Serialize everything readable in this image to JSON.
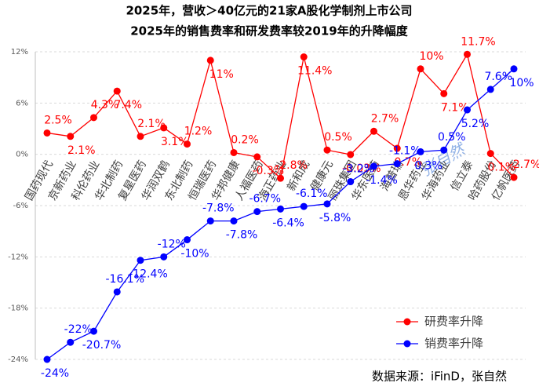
{
  "chart_data": {
    "type": "line",
    "title": "2025年，营收＞40亿元的21家A股化学制剂上市公司",
    "subtitle": "2025年的销售费率和研发费率较2019年的升降幅度",
    "source": "数据来源：iFinD，张自然",
    "watermark": "张自然",
    "categories": [
      "国药现代",
      "京新药业",
      "科伦药业",
      "华北制药",
      "复星医药",
      "华润双鹤",
      "东北制药",
      "恒瑞医药",
      "华邦健康",
      "人福医药",
      "海正药业",
      "新和成",
      "健康元",
      "丽珠集团",
      "华东医药",
      "海普瑞",
      "恩华药业",
      "华海药业",
      "信立泰",
      "哈药股份",
      "亿帆医药"
    ],
    "series": [
      {
        "name": "研费率升降",
        "color": "#ff0000",
        "values": [
          2.5,
          2.1,
          4.3,
          7.4,
          2.1,
          3.1,
          1.2,
          11,
          0.2,
          -0.3,
          -2.8,
          11.4,
          0.5,
          -0.03,
          2.7,
          0.7,
          10,
          7.1,
          11.7,
          0.1,
          -2.7
        ],
        "value_labels": [
          "2.5%",
          "2.1%",
          "4.3%",
          "7.4%",
          "2.1%",
          "3.1%",
          "1.2%",
          "11%",
          "0.2%",
          "-0.3%",
          "-2.8%",
          "11.4%",
          "0.5%",
          "-0.03%",
          "2.7%",
          "0.7%",
          "10%",
          "7.1%",
          "11.7%",
          "0.1%",
          "-2.7%"
        ]
      },
      {
        "name": "销费率升降",
        "color": "#0000ff",
        "values": [
          -24,
          -22,
          -20.7,
          -16.1,
          -12.4,
          -12,
          -10,
          -7.8,
          -7.8,
          -6.7,
          -6.4,
          -6.1,
          -5.8,
          -3.2,
          -1.4,
          -1.1,
          0.3,
          0.5,
          5.2,
          7.6,
          10
        ],
        "value_labels": [
          "-24%",
          "-22%",
          "-20.7%",
          "-16.1%",
          "-12.4%",
          "-12%",
          "-10%",
          "-7.8%",
          "-7.8%",
          "-6.7%",
          "-6.4%",
          "-6.1%",
          "-5.8%",
          "-3.2%",
          "-1.4%",
          "-1.1%",
          "0.3%",
          "0.5%",
          "5.2%",
          "7.6%",
          "10%"
        ]
      }
    ],
    "ylim": [
      -24,
      12
    ],
    "yticks": [
      {
        "value": -24,
        "label": "-24%"
      },
      {
        "value": -18,
        "label": "-18%"
      },
      {
        "value": -12,
        "label": "-12%"
      },
      {
        "value": -6,
        "label": "-6%"
      },
      {
        "value": 0,
        "label": "0%"
      },
      {
        "value": 6,
        "label": "6%"
      },
      {
        "value": 12,
        "label": "12%"
      }
    ],
    "grid": true,
    "legend": "lower right"
  }
}
